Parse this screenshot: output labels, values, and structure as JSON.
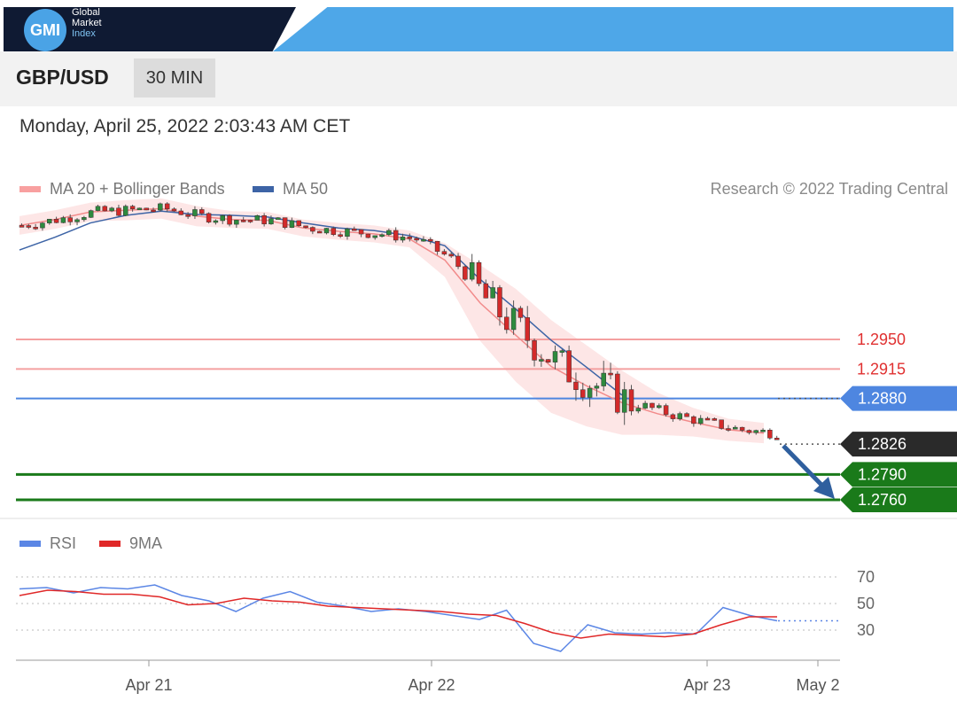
{
  "header": {
    "logo": {
      "short": "GMI",
      "line1": "Global",
      "line2": "Market",
      "line3": "Index"
    },
    "pair": "GBP/USD",
    "timeframe": "30 MIN"
  },
  "datetime": "Monday, April 25, 2022 2:03:43 AM CET",
  "legend": {
    "ma20": "MA 20 + Bollinger Bands",
    "ma50": "MA 50",
    "credit": "Research © 2022 Trading Central",
    "rsi": "RSI",
    "rsi_ma": "9MA"
  },
  "colors": {
    "ma20": "#f28b8b",
    "ma50": "#3d64a6",
    "band": "#fde3e3",
    "bullish": "#d42a2a",
    "bearish": "#2e8a3e",
    "resistance": "#f4a0a0",
    "pivot": "#4e86e0",
    "support": "#1a7a1a",
    "current": "#2a2a2a",
    "rsi": "#5b86e5",
    "rsi_ma": "#e02828"
  },
  "chart_data": [
    {
      "type": "line",
      "title": "GBP/USD 30 MIN",
      "x_tick_labels": [
        "Apr 21",
        "Apr 22",
        "Apr 23",
        "May 2"
      ],
      "ylim": [
        1.276,
        1.316
      ],
      "series": [
        {
          "name": "MA 20 + Bollinger Bands",
          "values": [
            1.3085,
            1.3092,
            1.3101,
            1.3103,
            1.3105,
            1.3096,
            1.3092,
            1.3091,
            1.3082,
            1.3078,
            1.3075,
            1.3069,
            1.3044,
            1.2993,
            1.2955,
            1.2918,
            1.2895,
            1.2875,
            1.2862,
            1.2852,
            1.2843,
            1.2839
          ]
        },
        {
          "name": "MA 50",
          "values": [
            1.3056,
            1.3071,
            1.3088,
            1.3097,
            1.3102,
            1.3098,
            1.3097,
            1.3095,
            1.3088,
            1.3082,
            1.3079,
            1.3073,
            1.3061,
            1.3021,
            1.2986,
            1.2949,
            1.2917,
            1.2884
          ]
        }
      ],
      "price_levels": [
        {
          "label": "1.2950",
          "value": 1.295,
          "kind": "resistance"
        },
        {
          "label": "1.2915",
          "value": 1.2915,
          "kind": "resistance"
        },
        {
          "label": "1.2880",
          "value": 1.288,
          "kind": "pivot"
        },
        {
          "label": "1.2826",
          "value": 1.2826,
          "kind": "current"
        },
        {
          "label": "1.2790",
          "value": 1.279,
          "kind": "support"
        },
        {
          "label": "1.2760",
          "value": 1.276,
          "kind": "support"
        }
      ],
      "forecast": "down"
    },
    {
      "type": "line",
      "title": "RSI",
      "y_tick_labels": [
        "70",
        "50",
        "30"
      ],
      "ylim": [
        10,
        80
      ],
      "series": [
        {
          "name": "RSI",
          "values": [
            61,
            62,
            58,
            62,
            61,
            64,
            56,
            52,
            44,
            54,
            59,
            51,
            48,
            44,
            46,
            44,
            41,
            38,
            45,
            20,
            14,
            34,
            28,
            27,
            28,
            27,
            47,
            41,
            37
          ]
        },
        {
          "name": "9MA",
          "values": [
            56,
            60,
            59,
            57,
            57,
            55,
            49,
            50,
            54,
            52,
            51,
            48,
            47,
            46,
            45,
            44,
            42,
            41,
            35,
            28,
            24,
            27,
            26,
            25,
            27,
            34,
            40,
            40
          ]
        }
      ]
    }
  ]
}
